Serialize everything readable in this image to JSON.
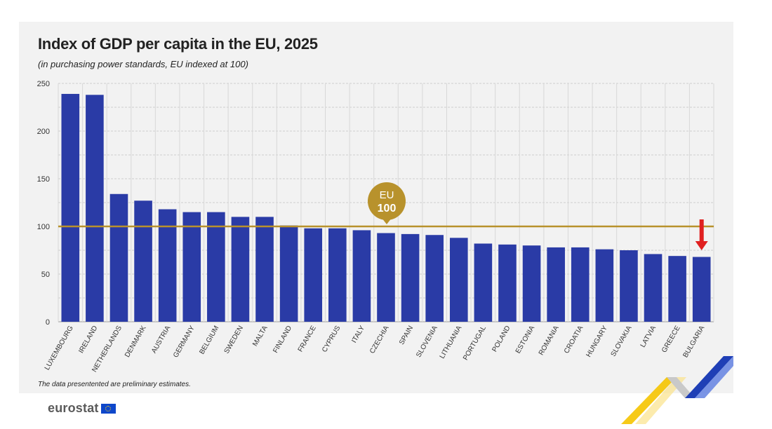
{
  "title": "Index of GDP per capita in the EU, 2025",
  "subtitle": "(in purchasing power standards, EU indexed at 100)",
  "footnote": "The data presentented are preliminary estimates.",
  "logo": {
    "text": "eurostat",
    "icon": "eu-flag-icon"
  },
  "colors": {
    "bar": "#2a3ba6",
    "reference_line": "#b8922c",
    "marker_arrow": "#e02020",
    "background": "#f2f2f2"
  },
  "chart_data": {
    "type": "bar",
    "categories": [
      "LUXEMBOURG",
      "IRELAND",
      "NETHERLANDS",
      "DENMARK",
      "AUSTRIA",
      "GERMANY",
      "BELGIUM",
      "SWEDEN",
      "MALTA",
      "FINLAND",
      "FRANCE",
      "CYPRUS",
      "ITALY",
      "CZECHIA",
      "SPAIN",
      "SLOVENIA",
      "LITHUANIA",
      "PORTUGAL",
      "POLAND",
      "ESTONIA",
      "ROMANIA",
      "CROATIA",
      "HUNGARY",
      "SLOVAKIA",
      "LATVIA",
      "GREECE",
      "BULGARIA"
    ],
    "values": [
      239,
      238,
      134,
      127,
      118,
      115,
      115,
      110,
      110,
      101,
      98,
      98,
      96,
      93,
      92,
      91,
      88,
      82,
      81,
      80,
      78,
      78,
      76,
      75,
      71,
      69,
      68
    ],
    "yticks": [
      "250",
      "200",
      "150",
      "100",
      "50",
      "0"
    ],
    "ylim": [
      0,
      250
    ],
    "grid": true,
    "reference": {
      "value": 100,
      "label_line1": "EU",
      "label_line2": "100"
    },
    "highlight": "BULGARIA"
  }
}
